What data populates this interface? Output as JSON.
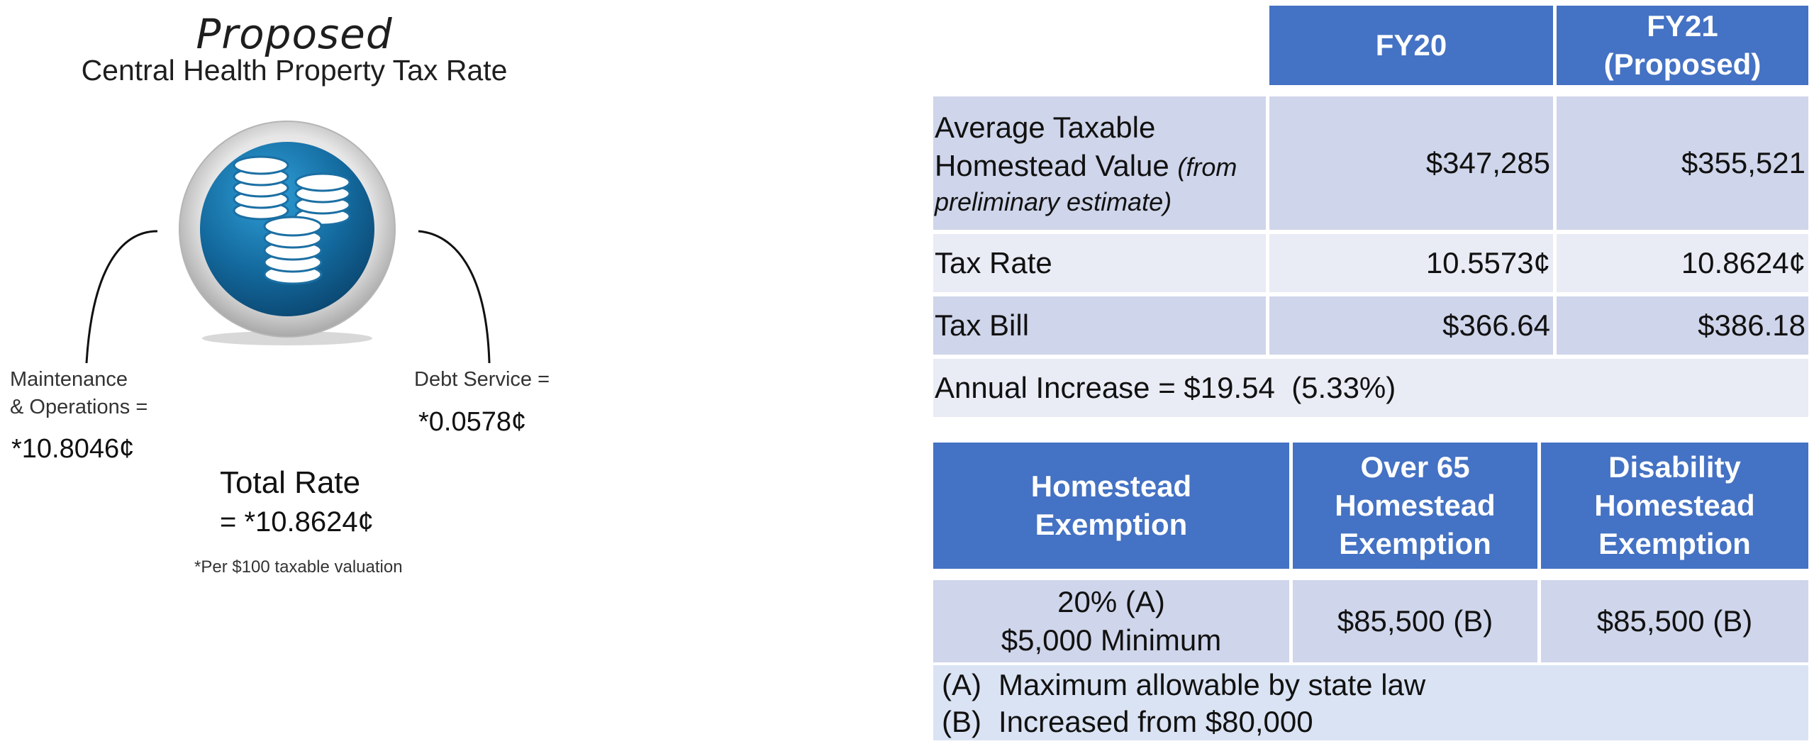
{
  "left": {
    "title_italic": "Proposed",
    "title_main": "Central Health Property Tax Rate",
    "icon": "coins-icon",
    "mo_label_line1": "Maintenance",
    "mo_label_line2": "& Operations =",
    "mo_value": "*10.8046¢",
    "debt_label": "Debt Service =",
    "debt_value": "*0.0578¢",
    "total_label": "Total Rate",
    "total_value": "= *10.8624¢",
    "note": "*Per $100 taxable valuation"
  },
  "rate_table": {
    "headers": [
      "FY20",
      "FY21",
      "(Proposed)"
    ],
    "rows": [
      {
        "label_line1": "Average Taxable",
        "label_line2": "Homestead Value",
        "label_italic_1": "(from",
        "label_italic_2": "preliminary estimate)",
        "fy20": "$347,285",
        "fy21": "$355,521"
      },
      {
        "label": "Tax Rate",
        "fy20": "10.5573¢",
        "fy21": "10.8624¢"
      },
      {
        "label": "Tax Bill",
        "fy20": "$366.64",
        "fy21": "$386.18"
      }
    ],
    "summary": "Annual Increase = $19.54  (5.33%)"
  },
  "exemption_table": {
    "headers": [
      [
        "Homestead",
        "Exemption"
      ],
      [
        "Over 65",
        "Homestead",
        "Exemption"
      ],
      [
        "Disability",
        "Homestead",
        "Exemption"
      ]
    ],
    "values": [
      [
        "20% (A)",
        "$5,000 Minimum"
      ],
      [
        "$85,500 (B)"
      ],
      [
        "$85,500 (B)"
      ]
    ],
    "footnotes": [
      {
        "tag": "(A)",
        "text": "Maximum allowable by state law"
      },
      {
        "tag": "(B)",
        "text": "Increased from $80,000"
      }
    ]
  },
  "colors": {
    "header_blue": "#4472c4",
    "row_dark": "#cfd5ea",
    "row_light": "#e9ebf5",
    "footnote_bg": "#dae3f3"
  }
}
